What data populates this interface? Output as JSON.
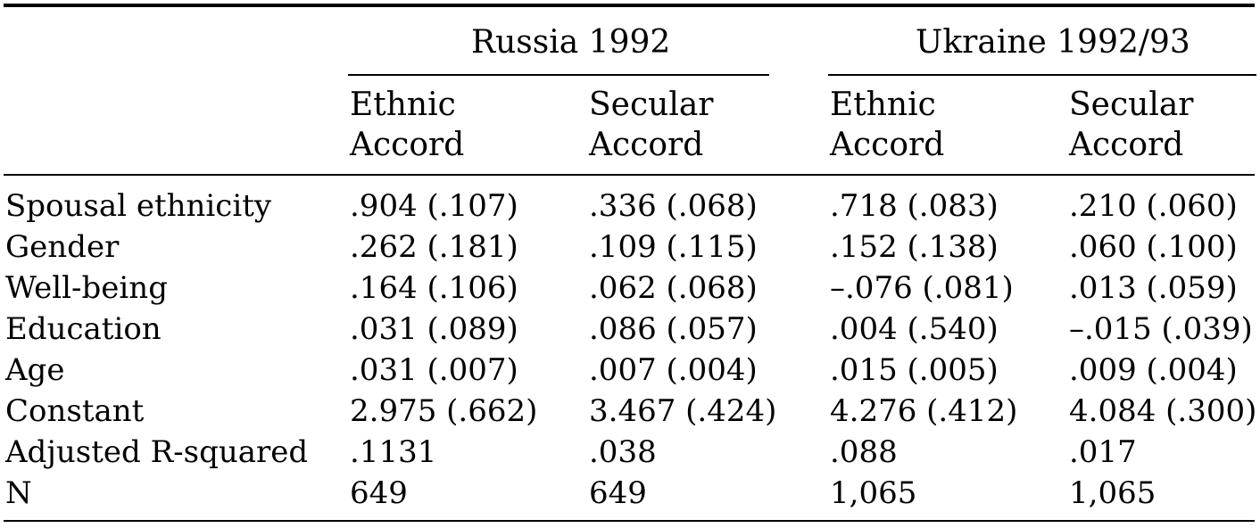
{
  "groups": [
    {
      "label": "Russia 1992"
    },
    {
      "label": "Ukraine 1992/93"
    }
  ],
  "subheaders": [
    {
      "line1": "Ethnic",
      "line2": "Accord"
    },
    {
      "line1": "Secular",
      "line2": "Accord"
    },
    {
      "line1": "Ethnic",
      "line2": "Accord"
    },
    {
      "line1": "Secular",
      "line2": "Accord"
    }
  ],
  "rows": [
    {
      "label": "Spousal ethnicity",
      "values": [
        ".904 (.107)",
        ".336 (.068)",
        ".718 (.083)",
        ".210 (.060)"
      ]
    },
    {
      "label": "Gender",
      "values": [
        ".262 (.181)",
        ".109 (.115)",
        ".152 (.138)",
        ".060 (.100)"
      ]
    },
    {
      "label": "Well-being",
      "values": [
        ".164 (.106)",
        ".062 (.068)",
        "–.076 (.081)",
        ".013 (.059)"
      ]
    },
    {
      "label": "Education",
      "values": [
        ".031 (.089)",
        ".086 (.057)",
        ".004 (.540)",
        "–.015 (.039)"
      ]
    },
    {
      "label": "Age",
      "values": [
        ".031 (.007)",
        ".007 (.004)",
        ".015 (.005)",
        ".009 (.004)"
      ]
    },
    {
      "label": "Constant",
      "values": [
        "2.975 (.662)",
        "3.467 (.424)",
        "4.276 (.412)",
        "4.084 (.300)"
      ]
    },
    {
      "label": "Adjusted R-squared",
      "values": [
        ".1131",
        ".038",
        ".088",
        ".017"
      ]
    },
    {
      "label": "N",
      "values": [
        "649",
        "649",
        "1,065",
        "1,065"
      ]
    }
  ]
}
